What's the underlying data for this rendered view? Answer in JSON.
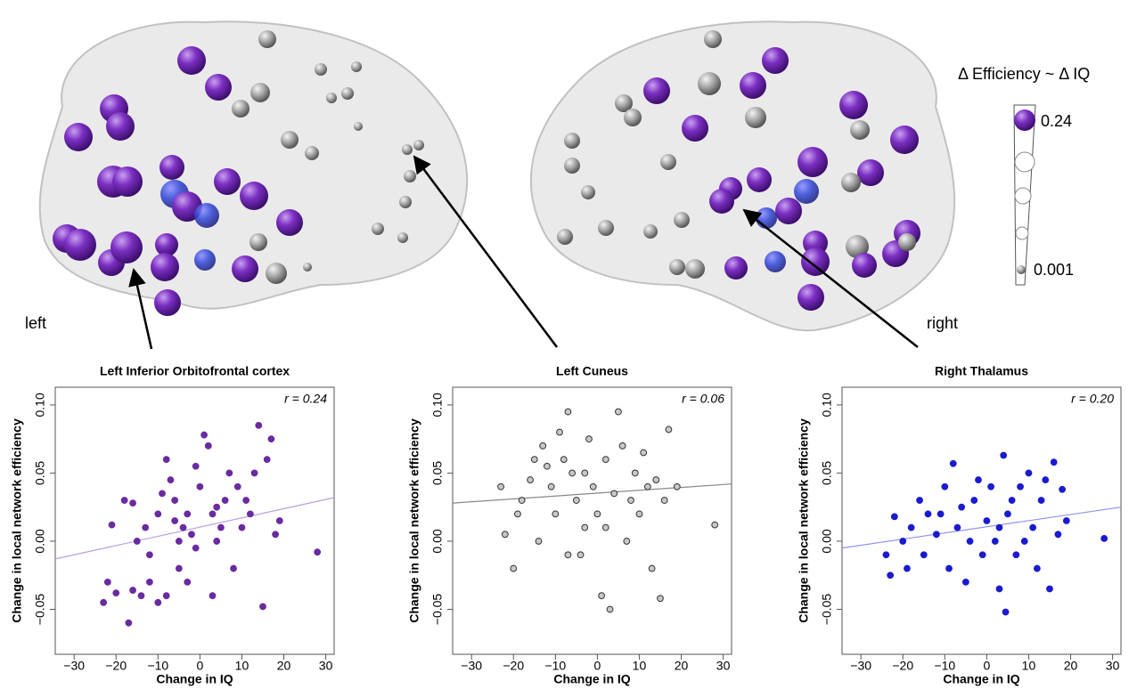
{
  "brain": {
    "left_label": "left",
    "right_label": "right",
    "legend_title": "Δ Efficiency ~ Δ IQ",
    "legend_max": "0.24",
    "legend_min": "0.001"
  },
  "chart_data": [
    {
      "type": "scatter",
      "title": "Left Inferior Orbitofrontal cortex",
      "annotation": "r = 0.24",
      "x_label": "Change in IQ",
      "y_label": "Change in local network efficiency",
      "color": "#6a2aa0",
      "edgecolor": "#6a2aa0",
      "trend_color": "#b9a0dc",
      "xlim": [
        -34.5,
        32
      ],
      "ylim": [
        -0.083,
        0.113
      ],
      "xticks": [
        {
          "value": -30,
          "label": "−30"
        },
        {
          "value": -20,
          "label": "−20"
        },
        {
          "value": -10,
          "label": "−10"
        },
        0,
        10,
        20,
        30
      ],
      "yticks": [
        {
          "value": -0.05,
          "label": "−0.05"
        },
        {
          "value": 0,
          "label": "0.00"
        },
        0.05,
        {
          "value": 0.1,
          "label": "0.10"
        }
      ],
      "trend": {
        "x": [
          -34.5,
          32
        ],
        "y": [
          -0.013,
          0.032
        ]
      },
      "x": [
        -23,
        -20,
        -17,
        -16,
        -14,
        -12,
        -10,
        -8,
        -5,
        -3,
        3,
        -22,
        -21,
        -18,
        -16,
        -15,
        -13,
        -12,
        -10,
        -8,
        -7,
        -6,
        -5,
        -4,
        -3,
        -2,
        -1,
        0,
        1,
        2,
        3,
        4,
        5,
        6,
        7,
        8,
        9,
        10,
        11,
        12,
        13,
        14,
        15,
        16,
        17,
        18,
        19,
        28,
        -9,
        -1,
        4,
        -6
      ],
      "values": [
        -0.045,
        -0.038,
        -0.06,
        -0.036,
        -0.04,
        -0.03,
        -0.045,
        -0.04,
        -0.02,
        -0.03,
        -0.04,
        -0.03,
        0.012,
        0.03,
        0.028,
        0.0,
        0.01,
        -0.01,
        0.02,
        0.06,
        0.045,
        0.03,
        0.0,
        0.01,
        0.02,
        0.005,
        -0.005,
        0.04,
        0.078,
        0.07,
        0.02,
        0.0,
        0.01,
        0.03,
        0.05,
        -0.02,
        0.04,
        0.01,
        0.03,
        0.02,
        0.05,
        0.085,
        -0.048,
        0.06,
        0.075,
        0.005,
        0.015,
        -0.008,
        0.035,
        0.055,
        0.025,
        0.015
      ]
    },
    {
      "type": "scatter",
      "title": "Left Cuneus",
      "annotation": "r = 0.06",
      "x_label": "Change in IQ",
      "y_label": "Change in local network efficiency",
      "color": "#c8c8c8",
      "edgecolor": "#333333",
      "trend_color": "#888888",
      "xlim": [
        -34.5,
        32
      ],
      "ylim": [
        -0.083,
        0.113
      ],
      "xticks": [
        {
          "value": -30,
          "label": "−30"
        },
        {
          "value": -20,
          "label": "−20"
        },
        {
          "value": -10,
          "label": "−10"
        },
        0,
        10,
        20,
        30
      ],
      "yticks": [
        {
          "value": -0.05,
          "label": "−0.05"
        },
        {
          "value": 0,
          "label": "0.00"
        },
        0.05,
        {
          "value": 0.1,
          "label": "0.10"
        }
      ],
      "trend": {
        "x": [
          -34.5,
          32
        ],
        "y": [
          0.028,
          0.042
        ]
      },
      "x": [
        -23,
        -22,
        -20,
        -19,
        -18,
        -16,
        -15,
        -14,
        -13,
        -12,
        -11,
        -10,
        -9,
        -8,
        -7,
        -6,
        -5,
        -4,
        -3,
        -2,
        -1,
        0,
        1,
        2,
        3,
        4,
        5,
        6,
        7,
        8,
        9,
        10,
        11,
        12,
        13,
        14,
        15,
        16,
        17,
        19,
        28,
        -7,
        2,
        -3
      ],
      "values": [
        0.04,
        0.005,
        -0.02,
        0.02,
        0.03,
        0.045,
        0.06,
        0.0,
        0.07,
        0.055,
        0.04,
        0.02,
        0.08,
        0.06,
        0.095,
        0.05,
        0.03,
        -0.01,
        0.01,
        0.075,
        0.04,
        0.02,
        -0.04,
        0.06,
        -0.05,
        0.035,
        0.095,
        0.07,
        0.0,
        0.03,
        0.05,
        0.02,
        0.065,
        0.04,
        -0.02,
        0.045,
        -0.042,
        0.03,
        0.082,
        0.04,
        0.012,
        -0.01,
        0.01,
        0.05
      ]
    },
    {
      "type": "scatter",
      "title": "Right Thalamus",
      "annotation": "r = 0.20",
      "x_label": "Change in IQ",
      "y_label": "Change in local network efficiency",
      "color": "#1a1ad0",
      "edgecolor": "#1a1ad0",
      "trend_color": "#9090ee",
      "xlim": [
        -34.5,
        32
      ],
      "ylim": [
        -0.083,
        0.113
      ],
      "xticks": [
        {
          "value": -30,
          "label": "−30"
        },
        {
          "value": -20,
          "label": "−20"
        },
        {
          "value": -10,
          "label": "−10"
        },
        0,
        10,
        20,
        30
      ],
      "yticks": [
        {
          "value": -0.05,
          "label": "−0.05"
        },
        {
          "value": 0,
          "label": "0.00"
        },
        0.05,
        {
          "value": 0.1,
          "label": "0.10"
        }
      ],
      "trend": {
        "x": [
          -34.5,
          32
        ],
        "y": [
          -0.005,
          0.025
        ]
      },
      "x": [
        -24,
        -23,
        -22,
        -20,
        -19,
        -18,
        -16,
        -15,
        -14,
        -12,
        -10,
        -9,
        -8,
        -7,
        -6,
        -5,
        -4,
        -3,
        -2,
        -1,
        0,
        1,
        2,
        3,
        4,
        4.5,
        5,
        6,
        7,
        8,
        9,
        10,
        11,
        12,
        13,
        14,
        15,
        16,
        17,
        18,
        19,
        28,
        -11,
        3
      ],
      "values": [
        -0.01,
        -0.025,
        0.018,
        0.0,
        -0.02,
        0.01,
        0.03,
        -0.01,
        0.02,
        0.005,
        0.04,
        -0.02,
        0.057,
        0.01,
        0.025,
        -0.03,
        0.0,
        0.03,
        0.045,
        -0.01,
        0.015,
        0.04,
        0.0,
        -0.035,
        0.063,
        -0.052,
        0.02,
        0.03,
        -0.01,
        0.04,
        0.0,
        0.05,
        0.01,
        -0.02,
        0.03,
        0.045,
        -0.035,
        0.058,
        0.005,
        0.038,
        0.015,
        0.002,
        0.02,
        0.01
      ]
    }
  ]
}
